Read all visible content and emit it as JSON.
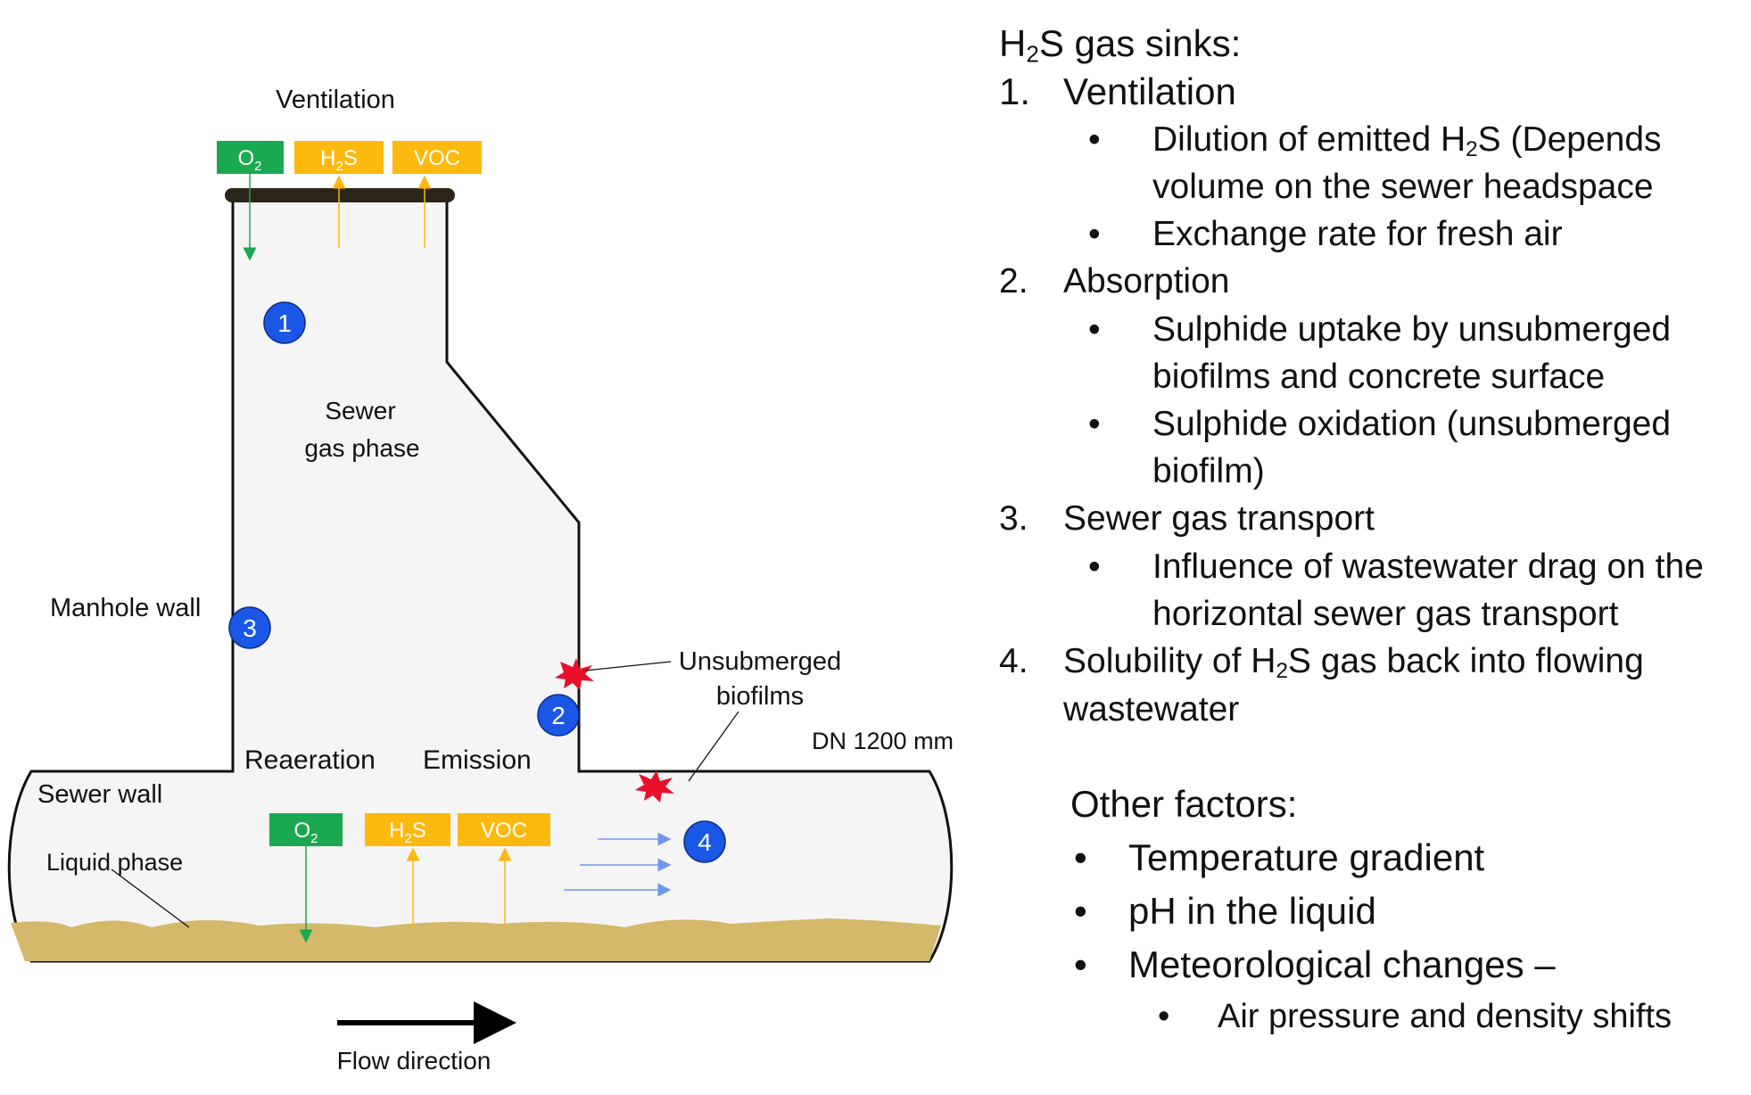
{
  "diagram": {
    "labels": {
      "ventilation": "Ventilation",
      "sewer_gas_phase_1": "Sewer",
      "sewer_gas_phase_2": "gas phase",
      "manhole_wall": "Manhole wall",
      "unsubmerged_1": "Unsubmerged",
      "unsubmerged_2": "biofilms",
      "dn": "DN 1200 mm",
      "reaeration": "Reaeration",
      "emission": "Emission",
      "sewer_wall": "Sewer wall",
      "liquid_phase": "Liquid phase",
      "flow_direction": "Flow direction"
    },
    "boxes": {
      "o2": "O",
      "o2_sub": "2",
      "h2s_a": "H",
      "h2s_sub": "2",
      "h2s_b": "S",
      "voc": "VOC"
    },
    "markers": [
      "1",
      "2",
      "3",
      "4"
    ],
    "colors": {
      "o2": "#1aa851",
      "gas": "#fdb90d",
      "marker": "#1a57e6",
      "liquid": "#d4b96a",
      "biofilm": "#e8102a",
      "flow_arrows": "#6f96ee",
      "pipe_fill": "#f5f5f5"
    }
  },
  "panel": {
    "title_a": "H",
    "title_sub": "2",
    "title_b": "S gas sinks:",
    "sinks": [
      {
        "number": "1.",
        "title": "Ventilation",
        "bullets": [
          {
            "a": "Dilution of emitted H",
            "sub": "2",
            "b": "S (Depends",
            "cont": "volume on the sewer headspace"
          },
          {
            "a": "Exchange rate for fresh air"
          }
        ]
      },
      {
        "number": "2.",
        "title": "Absorption",
        "bullets": [
          {
            "a": "Sulphide uptake by unsubmerged",
            "cont": "biofilms and concrete surface"
          },
          {
            "a": "Sulphide oxidation (unsubmerged",
            "cont": "biofilm)"
          }
        ]
      },
      {
        "number": "3.",
        "title": "Sewer gas transport",
        "bullets": [
          {
            "a": "Influence of wastewater drag on the",
            "cont": "horizontal sewer gas transport"
          }
        ]
      },
      {
        "number": "4.",
        "title_a": "Solubility of H",
        "title_sub": "2",
        "title_b": "S gas back into flowing",
        "title_cont": "wastewater"
      }
    ],
    "bullet_symbol": "•",
    "other_title": "Other factors:",
    "other": [
      "Temperature gradient",
      "pH in the liquid",
      "Meteorological changes –"
    ],
    "other_sub": "Air pressure and density shifts"
  }
}
